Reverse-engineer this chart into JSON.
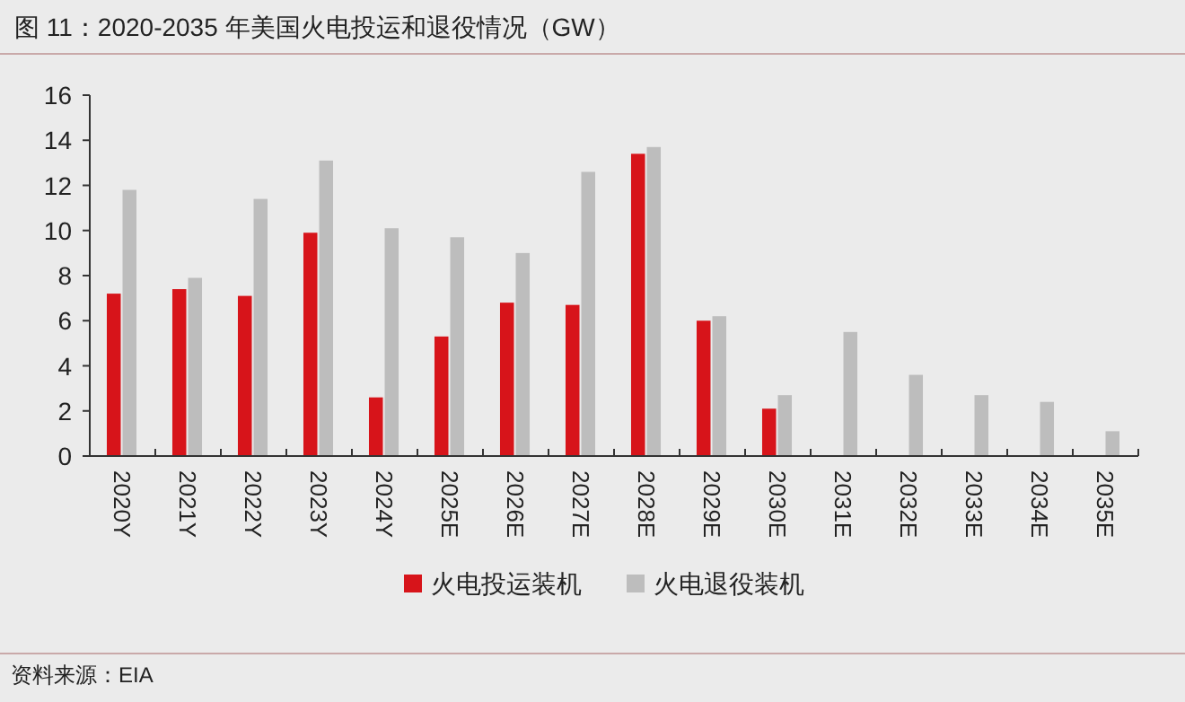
{
  "chart_data": {
    "type": "bar",
    "title": "图 11：2020-2035 年美国火电投运和退役情况（GW）",
    "categories": [
      "2020Y",
      "2021Y",
      "2022Y",
      "2023Y",
      "2024Y",
      "2025E",
      "2026E",
      "2027E",
      "2028E",
      "2029E",
      "2030E",
      "2031E",
      "2032E",
      "2033E",
      "2034E",
      "2035E"
    ],
    "series": [
      {
        "name": "火电投运装机",
        "color": "#d7141a",
        "values": [
          7.2,
          7.4,
          7.1,
          9.9,
          2.6,
          5.3,
          6.8,
          6.7,
          13.4,
          6.0,
          2.1,
          null,
          null,
          null,
          null,
          null
        ]
      },
      {
        "name": "火电退役装机",
        "color": "#bdbdbd",
        "values": [
          11.8,
          7.9,
          11.4,
          13.1,
          10.1,
          9.7,
          9.0,
          12.6,
          13.7,
          6.2,
          2.7,
          5.5,
          3.6,
          2.7,
          2.4,
          1.1
        ]
      }
    ],
    "ylim": [
      0,
      16
    ],
    "yticks": [
      0,
      2,
      4,
      6,
      8,
      10,
      12,
      14,
      16
    ],
    "legend": "bottom",
    "annotations": [
      "资料来源：EIA"
    ]
  }
}
